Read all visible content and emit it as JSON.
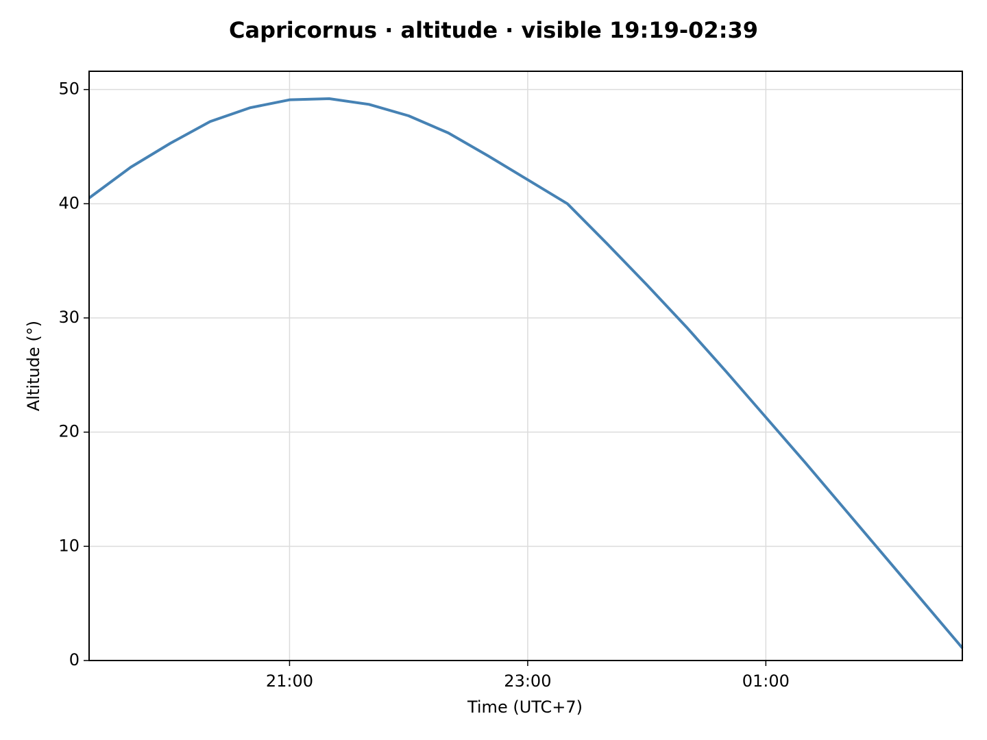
{
  "chart_data": {
    "type": "line",
    "title": "Capricornus · altitude · visible 19:19-02:39",
    "xlabel": "Time (UTC+7)",
    "ylabel": "Altitude (°)",
    "x": [
      "19:19",
      "19:40",
      "20:00",
      "20:20",
      "20:40",
      "21:00",
      "21:20",
      "21:40",
      "22:00",
      "22:20",
      "22:40",
      "23:00",
      "23:20",
      "23:40",
      "00:00",
      "00:20",
      "00:40",
      "01:00",
      "01:20",
      "01:40",
      "02:00",
      "02:20",
      "02:39"
    ],
    "series": [
      {
        "name": "Capricornus",
        "color": "#4682b4",
        "values": [
          40.5,
          43.2,
          45.3,
          47.2,
          48.4,
          49.1,
          49.2,
          48.7,
          47.7,
          46.2,
          44.2,
          42.1,
          40.0,
          36.5,
          32.9,
          29.2,
          25.3,
          21.3,
          17.3,
          13.2,
          9.1,
          5.0,
          1.1
        ]
      }
    ],
    "xlim": [
      "19:19",
      "02:39"
    ],
    "xticks": [
      "21:00",
      "23:00",
      "01:00"
    ],
    "ylim": [
      0,
      51.6
    ],
    "yticks": [
      0,
      10,
      20,
      30,
      40,
      50
    ],
    "grid": true
  }
}
